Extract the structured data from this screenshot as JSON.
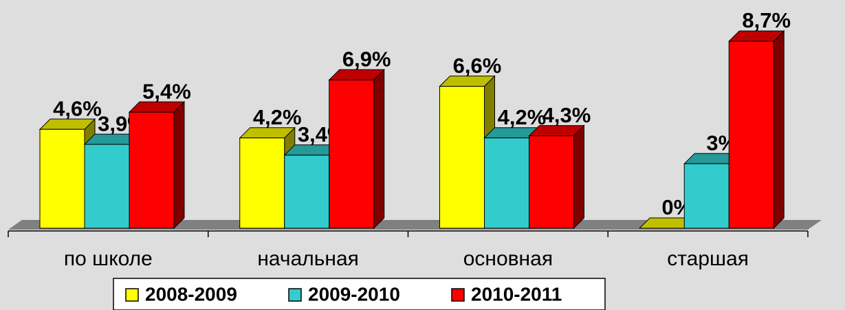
{
  "chart_data": {
    "type": "bar3d",
    "categories": [
      "по школе",
      "начальная",
      "основная",
      "старшая"
    ],
    "series": [
      {
        "name": "2008-2009",
        "color": "#ffff00",
        "values": [
          4.6,
          4.2,
          6.6,
          0
        ],
        "value_labels": [
          "4,6%",
          "4,2%",
          "6,6%",
          "0%"
        ]
      },
      {
        "name": "2009-2010",
        "color": "#33cccc",
        "values": [
          3.9,
          3.4,
          4.2,
          3
        ],
        "value_labels": [
          "3,9%",
          "3,4%",
          "4,2%",
          "3%"
        ]
      },
      {
        "name": "2010-2011",
        "color": "#ff0000",
        "values": [
          5.4,
          6.9,
          4.3,
          8.7
        ],
        "value_labels": [
          "5,4%",
          "6,9%",
          "4,3%",
          "8,7%"
        ]
      }
    ],
    "legend": "bottom"
  }
}
